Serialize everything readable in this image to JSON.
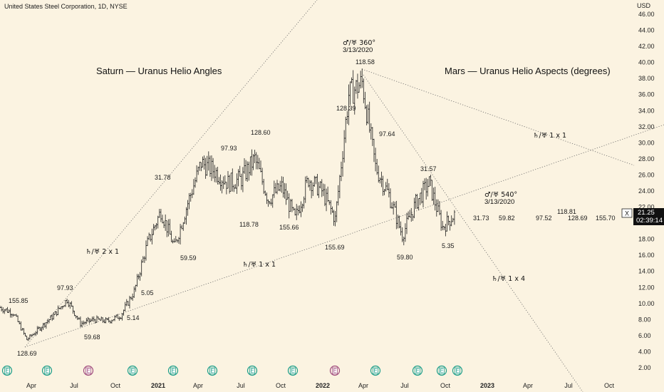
{
  "header": {
    "title": "United States Steel Corporation, 1D, NYSE"
  },
  "headings": {
    "left": "Saturn — Uranus Helio Angles",
    "right": "Mars — Uranus Helio Aspects (degrees)"
  },
  "price_axis": {
    "unit": "USD",
    "ticks": [
      "46.00",
      "44.00",
      "42.00",
      "40.00",
      "38.00",
      "36.00",
      "34.00",
      "32.00",
      "30.00",
      "28.00",
      "26.00",
      "24.00",
      "22.00",
      "20.00",
      "18.00",
      "16.00",
      "14.00",
      "12.00",
      "10.00",
      "8.00",
      "6.00",
      "4.00",
      "2.00"
    ],
    "current_price": "21.25",
    "countdown": "02:39:14",
    "marker": "X"
  },
  "time_axis": {
    "ticks": [
      "Apr",
      "Jul",
      "Oct",
      "2021",
      "Apr",
      "Jul",
      "Oct",
      "2022",
      "Apr",
      "Jul",
      "Oct",
      "2023",
      "Apr",
      "Jul",
      "Oct"
    ]
  },
  "colors": {
    "background": "#fbf3e1",
    "candle": "#1b1b1b",
    "trendline": "#6b6b6b",
    "earnings_green": "#1c9e8a",
    "earnings_red": "#a04b7e"
  },
  "earnings_markers": [
    {
      "label": "E",
      "color": "green"
    },
    {
      "label": "E",
      "color": "green"
    },
    {
      "label": "E",
      "color": "red"
    },
    {
      "label": "E",
      "color": "green"
    },
    {
      "label": "E",
      "color": "green"
    },
    {
      "label": "E",
      "color": "green"
    },
    {
      "label": "E",
      "color": "green"
    },
    {
      "label": "E",
      "color": "green"
    },
    {
      "label": "E",
      "color": "red"
    },
    {
      "label": "E",
      "color": "green"
    },
    {
      "label": "E",
      "color": "green"
    },
    {
      "label": "E",
      "color": "green"
    },
    {
      "label": "E",
      "color": "green"
    },
    {
      "label": "E",
      "color": "gray"
    }
  ],
  "chart_data": {
    "type": "candlestick",
    "title": "United States Steel Corporation, 1D, NYSE",
    "ylabel": "USD",
    "ylim": [
      1,
      47
    ],
    "x": [
      "2020-01",
      "2020-02",
      "2020-03",
      "2020-04",
      "2020-05",
      "2020-06",
      "2020-07",
      "2020-08",
      "2020-09",
      "2020-10",
      "2020-11",
      "2020-12",
      "2021-01",
      "2021-02",
      "2021-03",
      "2021-04",
      "2021-05",
      "2021-06",
      "2021-07",
      "2021-08",
      "2021-09",
      "2021-10",
      "2021-11",
      "2021-12",
      "2022-01",
      "2022-02",
      "2022-03",
      "2022-04",
      "2022-05",
      "2022-06",
      "2022-07",
      "2022-08",
      "2022-09",
      "2022-10",
      "2022-11"
    ],
    "close": [
      9.5,
      8.8,
      5.5,
      7.0,
      8.5,
      10.5,
      7.5,
      8.0,
      7.8,
      8.5,
      11.5,
      17.5,
      21.5,
      17.0,
      22.5,
      27.5,
      26.5,
      25.0,
      25.5,
      28.0,
      23.0,
      24.5,
      20.5,
      25.5,
      24.0,
      20.5,
      36.0,
      37.5,
      27.0,
      23.5,
      18.5,
      22.5,
      25.0,
      19.5,
      21.25
    ],
    "value_labels": [
      {
        "text": "155.85"
      },
      {
        "text": "97.93"
      },
      {
        "text": "128.69"
      },
      {
        "text": "59.68"
      },
      {
        "text": "5.14"
      },
      {
        "text": "5.05"
      },
      {
        "text": "31.78"
      },
      {
        "text": "59.59"
      },
      {
        "text": "97.93"
      },
      {
        "text": "118.78"
      },
      {
        "text": "128.60"
      },
      {
        "text": "155.66"
      },
      {
        "text": "155.69"
      },
      {
        "text": "128.39"
      },
      {
        "text": "118.58"
      },
      {
        "text": "97.64"
      },
      {
        "text": "59.80"
      },
      {
        "text": "31.57"
      },
      {
        "text": "5.35"
      },
      {
        "text": "31.73"
      },
      {
        "text": "59.82"
      },
      {
        "text": "97.52"
      },
      {
        "text": "118.81"
      },
      {
        "text": "128.69"
      },
      {
        "text": "155.70"
      }
    ],
    "annotations": [
      {
        "text": "♂/♅ 360°",
        "date": "3/13/2020"
      },
      {
        "text": "♂/♅ 540°",
        "date": "3/13/2020"
      },
      {
        "text": "♄/♅  2 x 1"
      },
      {
        "text": "♄/♅  1 x 1"
      },
      {
        "text": "♄/♅  1 x 1"
      },
      {
        "text": "♄/♅  1 x 4"
      }
    ],
    "legend": "none"
  }
}
